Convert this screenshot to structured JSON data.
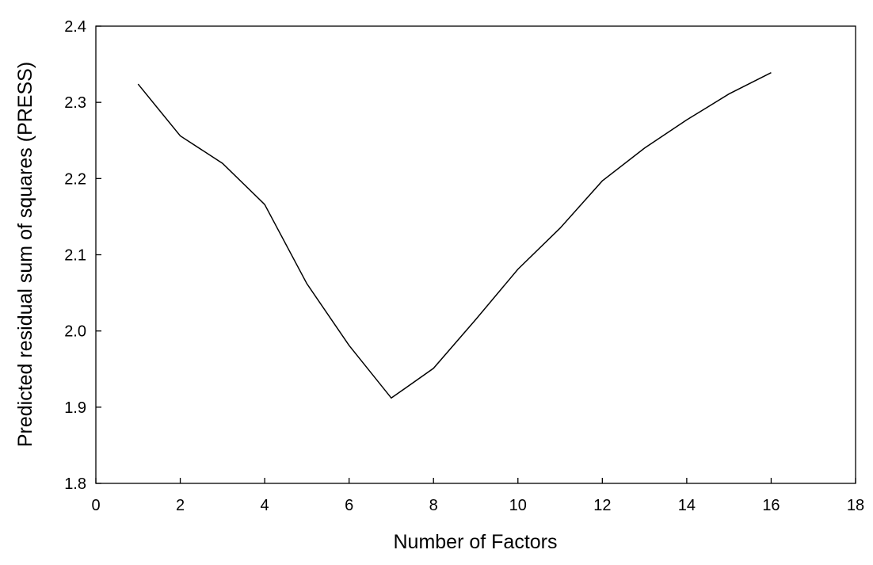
{
  "chart_data": {
    "type": "line",
    "xlabel": "Number of Factors",
    "ylabel": "Predicted residual sum of squares (PRESS)",
    "x": [
      1,
      2,
      3,
      4,
      5,
      6,
      7,
      8,
      9,
      10,
      11,
      12,
      13,
      14,
      15,
      16
    ],
    "series": [
      {
        "color": "#000000",
        "values": [
          2.324,
          2.256,
          2.22,
          2.166,
          2.062,
          1.981,
          1.912,
          1.951,
          2.015,
          2.081,
          2.135,
          2.197,
          2.24,
          2.277,
          2.311,
          2.339
        ]
      }
    ],
    "xlim": [
      0,
      18
    ],
    "xticks": [
      0,
      2,
      4,
      6,
      8,
      10,
      12,
      14,
      16,
      18
    ],
    "ylim": [
      1.8,
      2.4
    ],
    "yticks": [
      1.8,
      1.9,
      {
        "value": 2.0,
        "label": "2.0"
      },
      2.1,
      2.2,
      2.3,
      2.4
    ],
    "grid": false
  }
}
